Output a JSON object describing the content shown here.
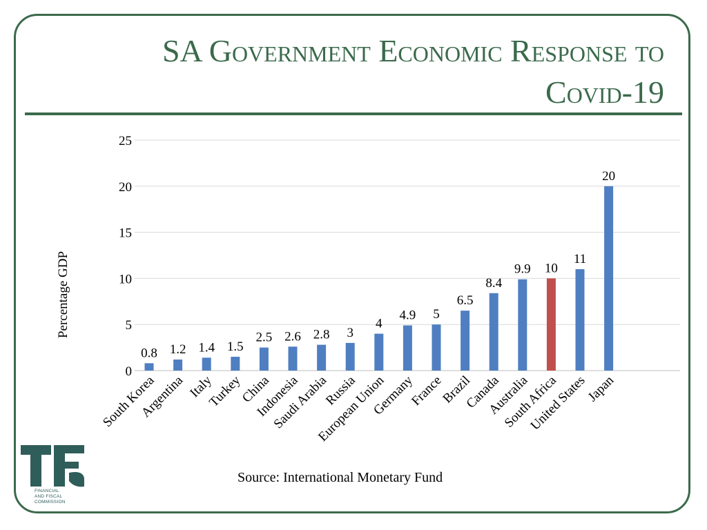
{
  "slide": {
    "title_line1": "SA Government Economic Response to",
    "title_line2": "Covid-19",
    "source": "Source: International Monetary Fund",
    "logo_text": [
      "FINANCIAL",
      "AND FISCAL",
      "COMMISSION"
    ]
  },
  "colors": {
    "accent": "#3b6a4b",
    "bar": "#4f7fc1",
    "highlight": "#c0504d",
    "logo": "#2f5d5a"
  },
  "chart_data": {
    "type": "bar",
    "ylabel": "Percentage GDP",
    "xlabel": "",
    "ylim": [
      0,
      25
    ],
    "yticks": [
      0,
      5,
      10,
      15,
      20,
      25
    ],
    "grid": true,
    "categories": [
      "South Korea",
      "Argentina",
      "Italy",
      "Turkey",
      "China",
      "Indonesia",
      "Saudi Arabia",
      "Russia",
      "European Union",
      "Germany",
      "France",
      "Brazil",
      "Canada",
      "Australia",
      "South Africa",
      "United States",
      "Japan"
    ],
    "values": [
      0.8,
      1.2,
      1.4,
      1.5,
      2.5,
      2.6,
      2.8,
      3,
      4,
      4.9,
      5,
      6.5,
      8.4,
      9.9,
      10,
      11,
      20
    ],
    "data_labels": [
      "0.8",
      "1.2",
      "1.4",
      "1.5",
      "2.5",
      "2.6",
      "2.8",
      "3",
      "4",
      "4.9",
      "5",
      "6.5",
      "8.4",
      "9.9",
      "10",
      "11",
      "20"
    ],
    "highlight_category": "South Africa"
  }
}
